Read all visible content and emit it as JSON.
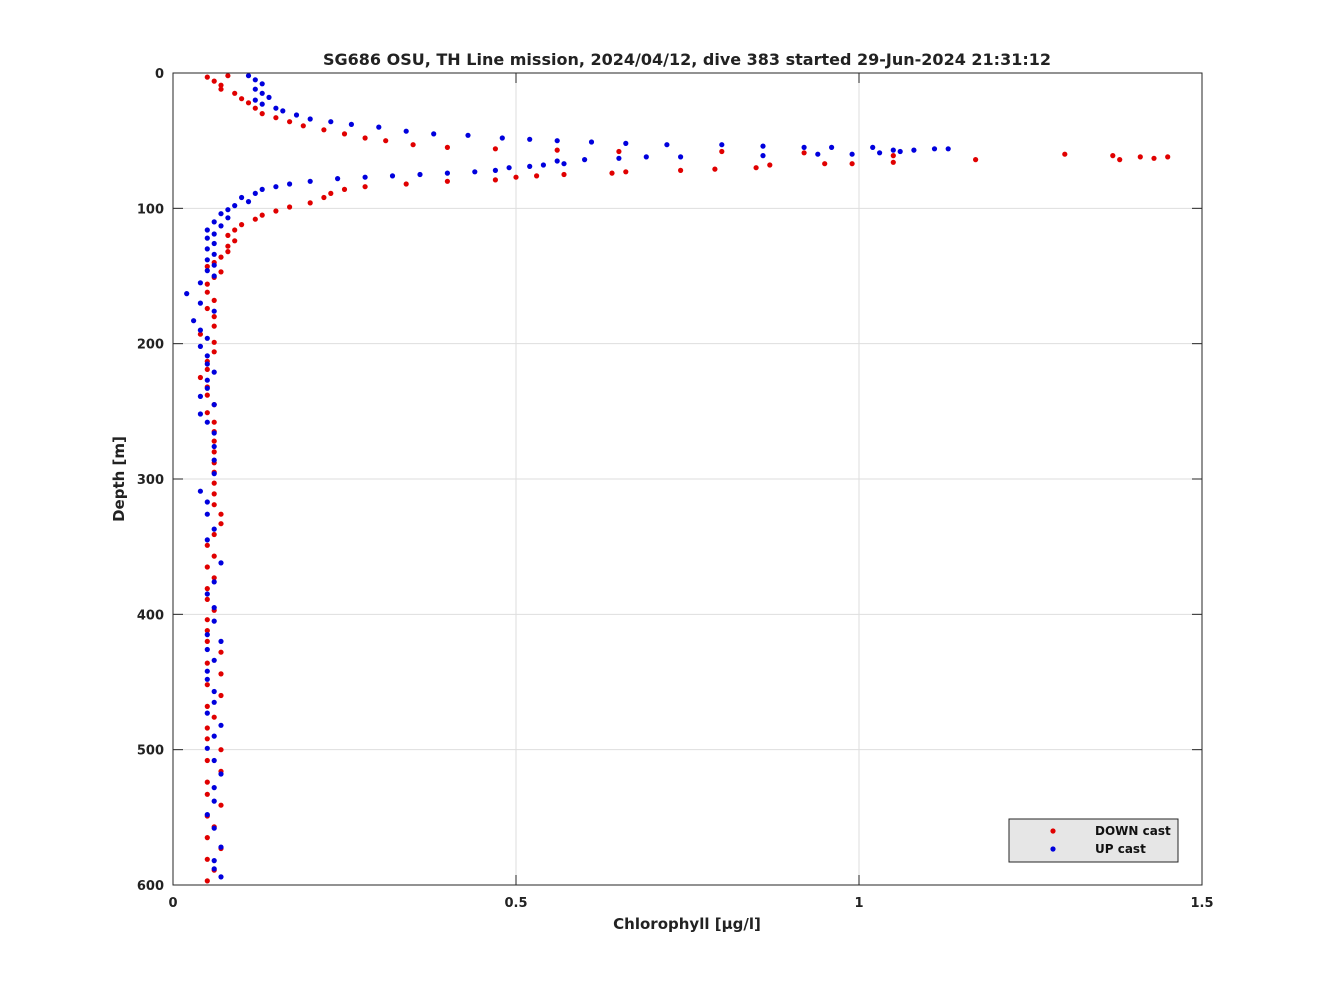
{
  "chart_data": {
    "type": "scatter",
    "title": "SG686 OSU, TH Line mission, 2024/04/12, dive 383 started 29-Jun-2024 21:31:12",
    "xlabel": "Chlorophyll [μg/l]",
    "ylabel": "Depth [m]",
    "xlim": [
      0,
      1.5
    ],
    "ylim": [
      0,
      600
    ],
    "y_reversed": true,
    "xticks": [
      0,
      0.5,
      1,
      1.5
    ],
    "xtick_labels": [
      "0",
      "0.5",
      "1",
      "1.5"
    ],
    "yticks": [
      0,
      100,
      200,
      300,
      400,
      500,
      600
    ],
    "ytick_labels": [
      "0",
      "100",
      "200",
      "300",
      "400",
      "500",
      "600"
    ],
    "grid": true,
    "legend_position": "bottom-right",
    "series": [
      {
        "name": "DOWN cast",
        "color": "#e00000",
        "points": [
          [
            0.05,
            3
          ],
          [
            0.06,
            6
          ],
          [
            0.07,
            9
          ],
          [
            0.08,
            2
          ],
          [
            0.07,
            12
          ],
          [
            0.09,
            15
          ],
          [
            0.1,
            19
          ],
          [
            0.11,
            22
          ],
          [
            0.12,
            26
          ],
          [
            0.13,
            30
          ],
          [
            0.15,
            33
          ],
          [
            0.17,
            36
          ],
          [
            0.19,
            39
          ],
          [
            0.22,
            42
          ],
          [
            0.25,
            45
          ],
          [
            0.28,
            48
          ],
          [
            0.31,
            50
          ],
          [
            0.35,
            53
          ],
          [
            0.4,
            55
          ],
          [
            0.47,
            56
          ],
          [
            0.56,
            57
          ],
          [
            0.65,
            58
          ],
          [
            0.8,
            58
          ],
          [
            0.92,
            59
          ],
          [
            1.05,
            61
          ],
          [
            1.17,
            64
          ],
          [
            1.3,
            60
          ],
          [
            1.37,
            61
          ],
          [
            1.41,
            62
          ],
          [
            1.43,
            63
          ],
          [
            1.45,
            62
          ],
          [
            1.38,
            64
          ],
          [
            1.05,
            66
          ],
          [
            0.99,
            67
          ],
          [
            0.95,
            67
          ],
          [
            0.87,
            68
          ],
          [
            0.85,
            70
          ],
          [
            0.79,
            71
          ],
          [
            0.74,
            72
          ],
          [
            0.66,
            73
          ],
          [
            0.64,
            74
          ],
          [
            0.57,
            75
          ],
          [
            0.53,
            76
          ],
          [
            0.5,
            77
          ],
          [
            0.47,
            79
          ],
          [
            0.4,
            80
          ],
          [
            0.34,
            82
          ],
          [
            0.28,
            84
          ],
          [
            0.25,
            86
          ],
          [
            0.23,
            89
          ],
          [
            0.22,
            92
          ],
          [
            0.2,
            96
          ],
          [
            0.17,
            99
          ],
          [
            0.15,
            102
          ],
          [
            0.13,
            105
          ],
          [
            0.12,
            108
          ],
          [
            0.1,
            112
          ],
          [
            0.09,
            116
          ],
          [
            0.08,
            120
          ],
          [
            0.09,
            124
          ],
          [
            0.08,
            128
          ],
          [
            0.08,
            132
          ],
          [
            0.07,
            136
          ],
          [
            0.06,
            140
          ],
          [
            0.05,
            143
          ],
          [
            0.07,
            147
          ],
          [
            0.06,
            151
          ],
          [
            0.05,
            156
          ],
          [
            0.05,
            162
          ],
          [
            0.06,
            168
          ],
          [
            0.05,
            174
          ],
          [
            0.06,
            180
          ],
          [
            0.06,
            187
          ],
          [
            0.04,
            193
          ],
          [
            0.06,
            199
          ],
          [
            0.06,
            206
          ],
          [
            0.05,
            213
          ],
          [
            0.05,
            219
          ],
          [
            0.04,
            225
          ],
          [
            0.05,
            232
          ],
          [
            0.05,
            238
          ],
          [
            0.06,
            245
          ],
          [
            0.05,
            251
          ],
          [
            0.06,
            258
          ],
          [
            0.06,
            265
          ],
          [
            0.06,
            272
          ],
          [
            0.06,
            280
          ],
          [
            0.06,
            288
          ],
          [
            0.06,
            295
          ],
          [
            0.06,
            303
          ],
          [
            0.06,
            311
          ],
          [
            0.06,
            319
          ],
          [
            0.07,
            326
          ],
          [
            0.07,
            333
          ],
          [
            0.06,
            341
          ],
          [
            0.05,
            349
          ],
          [
            0.06,
            357
          ],
          [
            0.05,
            365
          ],
          [
            0.06,
            373
          ],
          [
            0.05,
            381
          ],
          [
            0.05,
            389
          ],
          [
            0.06,
            397
          ],
          [
            0.05,
            404
          ],
          [
            0.05,
            412
          ],
          [
            0.05,
            420
          ],
          [
            0.07,
            428
          ],
          [
            0.05,
            436
          ],
          [
            0.07,
            444
          ],
          [
            0.05,
            452
          ],
          [
            0.07,
            460
          ],
          [
            0.05,
            468
          ],
          [
            0.06,
            476
          ],
          [
            0.05,
            484
          ],
          [
            0.05,
            492
          ],
          [
            0.07,
            500
          ],
          [
            0.05,
            508
          ],
          [
            0.07,
            516
          ],
          [
            0.05,
            524
          ],
          [
            0.05,
            533
          ],
          [
            0.07,
            541
          ],
          [
            0.05,
            549
          ],
          [
            0.06,
            557
          ],
          [
            0.05,
            565
          ],
          [
            0.07,
            573
          ],
          [
            0.05,
            581
          ],
          [
            0.06,
            589
          ],
          [
            0.05,
            597
          ]
        ]
      },
      {
        "name": "UP cast",
        "color": "#0000dd",
        "points": [
          [
            0.11,
            2
          ],
          [
            0.12,
            5
          ],
          [
            0.13,
            8
          ],
          [
            0.12,
            12
          ],
          [
            0.13,
            15
          ],
          [
            0.14,
            18
          ],
          [
            0.12,
            20
          ],
          [
            0.13,
            23
          ],
          [
            0.15,
            26
          ],
          [
            0.16,
            28
          ],
          [
            0.18,
            31
          ],
          [
            0.2,
            34
          ],
          [
            0.23,
            36
          ],
          [
            0.26,
            38
          ],
          [
            0.3,
            40
          ],
          [
            0.34,
            43
          ],
          [
            0.38,
            45
          ],
          [
            0.43,
            46
          ],
          [
            0.48,
            48
          ],
          [
            0.52,
            49
          ],
          [
            0.56,
            50
          ],
          [
            0.61,
            51
          ],
          [
            0.66,
            52
          ],
          [
            0.72,
            53
          ],
          [
            0.8,
            53
          ],
          [
            0.86,
            54
          ],
          [
            0.92,
            55
          ],
          [
            0.96,
            55
          ],
          [
            1.02,
            55
          ],
          [
            1.05,
            57
          ],
          [
            1.08,
            57
          ],
          [
            1.11,
            56
          ],
          [
            1.13,
            56
          ],
          [
            1.06,
            58
          ],
          [
            1.03,
            59
          ],
          [
            0.99,
            60
          ],
          [
            0.94,
            60
          ],
          [
            0.86,
            61
          ],
          [
            0.74,
            62
          ],
          [
            0.69,
            62
          ],
          [
            0.65,
            63
          ],
          [
            0.6,
            64
          ],
          [
            0.56,
            65
          ],
          [
            0.57,
            67
          ],
          [
            0.54,
            68
          ],
          [
            0.52,
            69
          ],
          [
            0.49,
            70
          ],
          [
            0.47,
            72
          ],
          [
            0.44,
            73
          ],
          [
            0.4,
            74
          ],
          [
            0.36,
            75
          ],
          [
            0.32,
            76
          ],
          [
            0.28,
            77
          ],
          [
            0.24,
            78
          ],
          [
            0.2,
            80
          ],
          [
            0.17,
            82
          ],
          [
            0.15,
            84
          ],
          [
            0.13,
            86
          ],
          [
            0.12,
            89
          ],
          [
            0.1,
            92
          ],
          [
            0.11,
            95
          ],
          [
            0.09,
            98
          ],
          [
            0.08,
            101
          ],
          [
            0.07,
            104
          ],
          [
            0.08,
            107
          ],
          [
            0.06,
            110
          ],
          [
            0.07,
            113
          ],
          [
            0.05,
            116
          ],
          [
            0.06,
            119
          ],
          [
            0.05,
            122
          ],
          [
            0.06,
            126
          ],
          [
            0.05,
            130
          ],
          [
            0.06,
            134
          ],
          [
            0.05,
            138
          ],
          [
            0.06,
            142
          ],
          [
            0.05,
            146
          ],
          [
            0.06,
            150
          ],
          [
            0.04,
            155
          ],
          [
            0.02,
            163
          ],
          [
            0.04,
            170
          ],
          [
            0.06,
            176
          ],
          [
            0.03,
            183
          ],
          [
            0.04,
            190
          ],
          [
            0.05,
            196
          ],
          [
            0.04,
            202
          ],
          [
            0.05,
            209
          ],
          [
            0.05,
            215
          ],
          [
            0.06,
            221
          ],
          [
            0.05,
            227
          ],
          [
            0.05,
            233
          ],
          [
            0.04,
            239
          ],
          [
            0.06,
            245
          ],
          [
            0.04,
            252
          ],
          [
            0.05,
            258
          ],
          [
            0.06,
            266
          ],
          [
            0.06,
            276
          ],
          [
            0.06,
            286
          ],
          [
            0.06,
            296
          ],
          [
            0.04,
            309
          ],
          [
            0.05,
            317
          ],
          [
            0.05,
            326
          ],
          [
            0.06,
            337
          ],
          [
            0.05,
            345
          ],
          [
            0.07,
            362
          ],
          [
            0.06,
            376
          ],
          [
            0.05,
            385
          ],
          [
            0.06,
            395
          ],
          [
            0.06,
            405
          ],
          [
            0.05,
            415
          ],
          [
            0.07,
            420
          ],
          [
            0.05,
            426
          ],
          [
            0.06,
            434
          ],
          [
            0.05,
            442
          ],
          [
            0.05,
            448
          ],
          [
            0.06,
            457
          ],
          [
            0.06,
            465
          ],
          [
            0.05,
            473
          ],
          [
            0.07,
            482
          ],
          [
            0.06,
            490
          ],
          [
            0.05,
            499
          ],
          [
            0.06,
            508
          ],
          [
            0.07,
            518
          ],
          [
            0.06,
            528
          ],
          [
            0.06,
            538
          ],
          [
            0.05,
            548
          ],
          [
            0.06,
            558
          ],
          [
            0.07,
            572
          ],
          [
            0.06,
            582
          ],
          [
            0.06,
            588
          ],
          [
            0.07,
            594
          ]
        ]
      }
    ]
  }
}
